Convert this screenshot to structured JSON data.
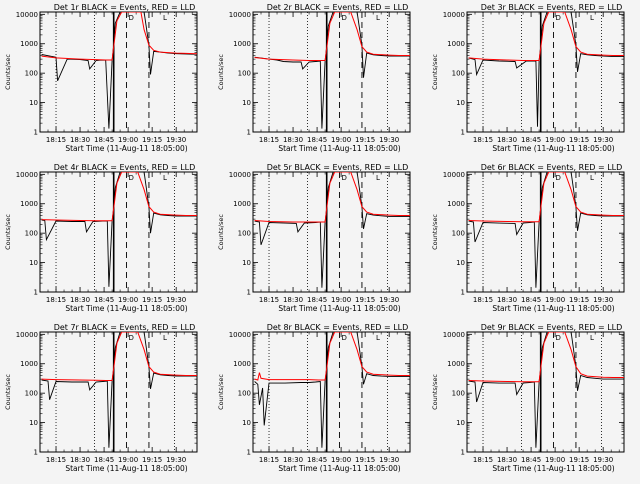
{
  "chart_data": {
    "type": "line",
    "rows": 3,
    "cols": 3,
    "x_axis": {
      "label": "Start Time (11-Aug-11 18:05:00)",
      "range": [
        "18:05",
        "19:43"
      ],
      "ticks": [
        "18:15",
        "18:30",
        "18:45",
        "19:00",
        "19:15",
        "19:30"
      ]
    },
    "y_axis": {
      "label": "Counts/sec",
      "scale": "log",
      "range": [
        1,
        12000
      ],
      "ticks": [
        "1",
        "10",
        "100",
        "1000",
        "10000"
      ]
    },
    "vertical_markers": {
      "dotted": [
        "18:15",
        "18:39",
        "19:29"
      ],
      "solid": [
        "18:51"
      ],
      "dashed": [
        "18:59",
        "19:13"
      ]
    },
    "series_colors": {
      "black": "#000000",
      "red": "#ff0000"
    },
    "panels": [
      {
        "title": "Det 1r BLACK = Events, RED = LLD",
        "markers": [
          "D",
          "L"
        ],
        "events_x": [
          "18:06",
          "18:15",
          "18:16",
          "18:22",
          "18:30",
          "18:35",
          "18:36",
          "18:40",
          "18:43",
          "18:46",
          "18:48",
          "18:50",
          "18:51",
          "18:52",
          "18:55",
          "18:57",
          "18:59",
          "19:02",
          "19:05",
          "19:08",
          "19:10",
          "19:13",
          "19:14",
          "19:16",
          "19:20",
          "19:25",
          "19:30",
          "19:35",
          "19:40",
          "19:43"
        ],
        "events_y": [
          430,
          350,
          55,
          300,
          290,
          270,
          140,
          270,
          280,
          275,
          1.3,
          270,
          900,
          5000,
          12000,
          12000,
          12000,
          12000,
          12000,
          12000,
          12000,
          900,
          90,
          550,
          520,
          480,
          460,
          450,
          440,
          440
        ],
        "lld_x": [
          "18:06",
          "18:15",
          "18:30",
          "18:40",
          "18:46",
          "18:50",
          "18:51",
          "18:53",
          "18:56",
          "19:00",
          "19:05",
          "19:08",
          "19:10",
          "19:13",
          "19:16",
          "19:20",
          "19:30",
          "19:36",
          "19:43"
        ],
        "lld_y": [
          380,
          330,
          300,
          290,
          280,
          280,
          800,
          6000,
          12000,
          12000,
          12000,
          12000,
          3000,
          900,
          600,
          520,
          480,
          470,
          460
        ]
      },
      {
        "title": "Det 2r BLACK = Events, RED = LLD",
        "markers": [
          "D",
          "L"
        ],
        "events_x": [
          "18:06",
          "18:15",
          "18:20",
          "18:24",
          "18:30",
          "18:35",
          "18:36",
          "18:40",
          "18:44",
          "18:47",
          "18:48",
          "18:50",
          "18:51",
          "18:52",
          "18:55",
          "18:58",
          "19:02",
          "19:06",
          "19:10",
          "19:13",
          "19:14",
          "19:16",
          "19:20",
          "19:25",
          "19:30",
          "19:35",
          "19:43"
        ],
        "events_y": [
          350,
          300,
          280,
          250,
          240,
          240,
          140,
          240,
          250,
          260,
          1.3,
          260,
          800,
          4000,
          12000,
          12000,
          12000,
          12000,
          12000,
          900,
          70,
          480,
          420,
          400,
          380,
          380,
          380
        ],
        "lld_x": [
          "18:06",
          "18:15",
          "18:30",
          "18:40",
          "18:46",
          "18:50",
          "18:51",
          "18:53",
          "18:56",
          "19:00",
          "19:06",
          "19:10",
          "19:13",
          "19:16",
          "19:20",
          "19:30",
          "19:36",
          "19:43"
        ],
        "lld_y": [
          340,
          300,
          280,
          270,
          270,
          270,
          700,
          5000,
          12000,
          12000,
          12000,
          3000,
          800,
          520,
          440,
          410,
          400,
          400
        ]
      },
      {
        "title": "Det 3r BLACK = Events, RED = LLD",
        "markers": [
          "D",
          "L"
        ],
        "events_x": [
          "18:06",
          "18:10",
          "18:11",
          "18:15",
          "18:25",
          "18:35",
          "18:36",
          "18:42",
          "18:48",
          "18:49",
          "18:50",
          "18:51",
          "18:52",
          "18:55",
          "18:58",
          "19:02",
          "19:06",
          "19:10",
          "19:13",
          "19:14",
          "19:16",
          "19:20",
          "19:25",
          "19:30",
          "19:35",
          "19:43"
        ],
        "events_y": [
          330,
          290,
          90,
          280,
          260,
          250,
          150,
          260,
          260,
          1.5,
          270,
          800,
          4000,
          12000,
          12000,
          12000,
          12000,
          12000,
          900,
          110,
          460,
          420,
          400,
          380,
          370,
          370
        ],
        "lld_x": [
          "18:06",
          "18:15",
          "18:30",
          "18:40",
          "18:46",
          "18:50",
          "18:51",
          "18:53",
          "18:56",
          "19:00",
          "19:06",
          "19:10",
          "19:13",
          "19:16",
          "19:20",
          "19:30",
          "19:36",
          "19:43"
        ],
        "lld_y": [
          330,
          300,
          280,
          270,
          270,
          270,
          700,
          5000,
          12000,
          12000,
          12000,
          3000,
          800,
          520,
          440,
          410,
          400,
          400
        ]
      },
      {
        "title": "Det 4r BLACK = Events, RED = LLD",
        "markers": [
          "D",
          "L"
        ],
        "events_x": [
          "18:06",
          "18:08",
          "18:09",
          "18:15",
          "18:25",
          "18:33",
          "18:34",
          "18:38",
          "18:44",
          "18:47",
          "18:48",
          "18:50",
          "18:51",
          "18:52",
          "18:55",
          "18:58",
          "19:02",
          "19:06",
          "19:10",
          "19:13",
          "19:14",
          "19:16",
          "19:20",
          "19:25",
          "19:30",
          "19:35",
          "19:43"
        ],
        "events_y": [
          280,
          270,
          60,
          260,
          250,
          250,
          110,
          250,
          260,
          260,
          1.5,
          260,
          700,
          3500,
          12000,
          12000,
          12000,
          12000,
          12000,
          800,
          100,
          480,
          420,
          400,
          380,
          380,
          380
        ],
        "lld_x": [
          "18:06",
          "18:15",
          "18:30",
          "18:40",
          "18:46",
          "18:50",
          "18:51",
          "18:53",
          "18:56",
          "19:00",
          "19:06",
          "19:10",
          "19:13",
          "19:16",
          "19:20",
          "19:30",
          "19:36",
          "19:43"
        ],
        "lld_y": [
          290,
          280,
          270,
          265,
          265,
          265,
          700,
          5000,
          12000,
          12000,
          12000,
          3000,
          800,
          520,
          440,
          410,
          400,
          400
        ]
      },
      {
        "title": "Det 5r BLACK = Events, RED = LLD",
        "markers": [
          "D",
          "L"
        ],
        "events_x": [
          "18:06",
          "18:09",
          "18:10",
          "18:15",
          "18:25",
          "18:32",
          "18:33",
          "18:37",
          "18:44",
          "18:47",
          "18:48",
          "18:50",
          "18:51",
          "18:52",
          "18:55",
          "18:58",
          "19:02",
          "19:06",
          "19:10",
          "19:13",
          "19:14",
          "19:16",
          "19:20",
          "19:25",
          "19:30",
          "19:35",
          "19:43"
        ],
        "events_y": [
          260,
          240,
          40,
          230,
          220,
          215,
          110,
          220,
          230,
          240,
          1.4,
          240,
          700,
          3500,
          12000,
          12000,
          12000,
          12000,
          12000,
          800,
          140,
          460,
          410,
          390,
          370,
          370,
          370
        ],
        "lld_x": [
          "18:06",
          "18:15",
          "18:30",
          "18:40",
          "18:46",
          "18:50",
          "18:51",
          "18:53",
          "18:56",
          "19:00",
          "19:06",
          "19:10",
          "19:13",
          "19:16",
          "19:20",
          "19:30",
          "19:36",
          "19:43"
        ],
        "lld_y": [
          270,
          250,
          240,
          240,
          240,
          240,
          700,
          5000,
          12000,
          12000,
          12000,
          3000,
          800,
          520,
          440,
          410,
          400,
          400
        ]
      },
      {
        "title": "Det 6r BLACK = Events, RED = LLD",
        "markers": [
          "D",
          "L"
        ],
        "events_x": [
          "18:06",
          "18:09",
          "18:10",
          "18:15",
          "18:25",
          "18:35",
          "18:36",
          "18:40",
          "18:44",
          "18:47",
          "18:48",
          "18:50",
          "18:51",
          "18:52",
          "18:55",
          "18:58",
          "19:02",
          "19:06",
          "19:10",
          "19:13",
          "19:14",
          "19:16",
          "19:20",
          "19:25",
          "19:30",
          "19:35",
          "19:43"
        ],
        "events_y": [
          260,
          240,
          50,
          230,
          220,
          215,
          90,
          220,
          230,
          240,
          1.4,
          240,
          700,
          3500,
          12000,
          12000,
          12000,
          12000,
          12000,
          800,
          120,
          480,
          420,
          400,
          380,
          380,
          380
        ],
        "lld_x": [
          "18:06",
          "18:15",
          "18:30",
          "18:40",
          "18:46",
          "18:50",
          "18:51",
          "18:53",
          "18:56",
          "19:00",
          "19:06",
          "19:10",
          "19:13",
          "19:16",
          "19:20",
          "19:30",
          "19:36",
          "19:43"
        ],
        "lld_y": [
          270,
          260,
          250,
          245,
          245,
          245,
          700,
          5000,
          12000,
          12000,
          12000,
          3000,
          800,
          520,
          440,
          410,
          400,
          400
        ]
      },
      {
        "title": "Det 7r BLACK = Events, RED = LLD",
        "markers": [
          "D",
          "L"
        ],
        "events_x": [
          "18:06",
          "18:10",
          "18:11",
          "18:15",
          "18:25",
          "18:35",
          "18:36",
          "18:40",
          "18:44",
          "18:47",
          "18:48",
          "18:50",
          "18:51",
          "18:52",
          "18:55",
          "18:58",
          "19:02",
          "19:06",
          "19:10",
          "19:13",
          "19:14",
          "19:16",
          "19:20",
          "19:25",
          "19:30",
          "19:35",
          "19:43"
        ],
        "events_y": [
          280,
          260,
          60,
          250,
          240,
          240,
          130,
          240,
          250,
          260,
          1.4,
          260,
          700,
          3500,
          12000,
          12000,
          12000,
          12000,
          12000,
          800,
          140,
          480,
          420,
          400,
          380,
          380,
          380
        ],
        "lld_x": [
          "18:06",
          "18:15",
          "18:30",
          "18:40",
          "18:46",
          "18:50",
          "18:51",
          "18:53",
          "18:56",
          "19:00",
          "19:06",
          "19:10",
          "19:13",
          "19:16",
          "19:20",
          "19:30",
          "19:36",
          "19:43"
        ],
        "lld_y": [
          300,
          290,
          280,
          275,
          270,
          270,
          700,
          5000,
          12000,
          12000,
          12000,
          3000,
          800,
          520,
          440,
          410,
          400,
          400
        ]
      },
      {
        "title": "Det 8r BLACK = Events, RED = LLD",
        "markers": [
          "D",
          "L"
        ],
        "events_x": [
          "18:06",
          "18:08",
          "18:09",
          "18:11",
          "18:12",
          "18:15",
          "18:25",
          "18:35",
          "18:40",
          "18:44",
          "18:47",
          "18:48",
          "18:50",
          "18:51",
          "18:52",
          "18:55",
          "18:58",
          "19:02",
          "19:06",
          "19:10",
          "19:13",
          "19:14",
          "19:16",
          "19:20",
          "19:25",
          "19:30",
          "19:35",
          "19:43"
        ],
        "events_y": [
          250,
          200,
          40,
          150,
          8,
          220,
          220,
          230,
          230,
          240,
          250,
          1.4,
          260,
          700,
          3500,
          12000,
          12000,
          12000,
          12000,
          12000,
          800,
          200,
          460,
          400,
          380,
          370,
          370,
          370
        ],
        "lld_x": [
          "18:06",
          "18:08",
          "18:09",
          "18:10",
          "18:15",
          "18:30",
          "18:40",
          "18:46",
          "18:50",
          "18:51",
          "18:53",
          "18:56",
          "19:00",
          "19:06",
          "19:10",
          "19:13",
          "19:16",
          "19:20",
          "19:30",
          "19:36",
          "19:43"
        ],
        "lld_y": [
          300,
          280,
          500,
          320,
          290,
          290,
          290,
          280,
          280,
          700,
          5000,
          12000,
          12000,
          12000,
          3000,
          800,
          520,
          440,
          410,
          400,
          400
        ]
      },
      {
        "title": "Det 9r BLACK = Events, RED = LLD",
        "markers": [
          "D",
          "L"
        ],
        "events_x": [
          "18:06",
          "18:10",
          "18:11",
          "18:15",
          "18:25",
          "18:35",
          "18:36",
          "18:40",
          "18:44",
          "18:47",
          "18:48",
          "18:50",
          "18:51",
          "18:52",
          "18:55",
          "18:58",
          "19:02",
          "19:06",
          "19:10",
          "19:13",
          "19:14",
          "19:16",
          "19:20",
          "19:25",
          "19:30",
          "19:35",
          "19:43"
        ],
        "events_y": [
          260,
          240,
          50,
          230,
          220,
          220,
          90,
          220,
          230,
          240,
          1.4,
          240,
          700,
          3500,
          12000,
          12000,
          12000,
          12000,
          12000,
          800,
          120,
          400,
          340,
          320,
          300,
          300,
          300
        ],
        "lld_x": [
          "18:06",
          "18:15",
          "18:30",
          "18:40",
          "18:46",
          "18:50",
          "18:51",
          "18:53",
          "18:56",
          "19:00",
          "19:06",
          "19:10",
          "19:13",
          "19:16",
          "19:20",
          "19:30",
          "19:36",
          "19:43"
        ],
        "lld_y": [
          270,
          260,
          250,
          245,
          245,
          245,
          700,
          5000,
          12000,
          12000,
          12000,
          3000,
          800,
          460,
          380,
          350,
          340,
          340
        ]
      }
    ]
  }
}
